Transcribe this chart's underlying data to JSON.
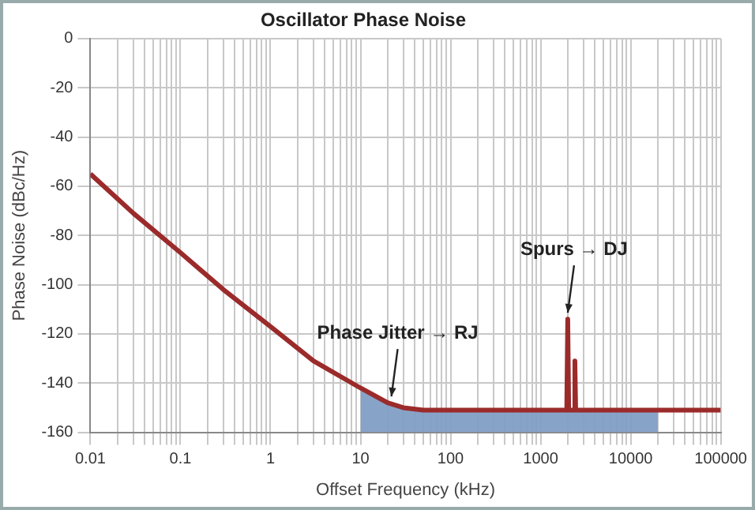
{
  "chart_data": {
    "type": "line",
    "title": "Oscillator Phase Noise",
    "xlabel": "Offset Frequency (kHz)",
    "ylabel": "Phase Noise (dBc/Hz)",
    "log": "x",
    "grid": true,
    "legend": false,
    "marker": "none",
    "line_style": "solid",
    "xlim": [
      0.01,
      100000
    ],
    "ylim": [
      -160,
      0
    ],
    "xticks": [
      0.01,
      {
        "value": 0.02,
        "label": null
      },
      {
        "value": 0.03,
        "label": null
      },
      {
        "value": 0.04,
        "label": null
      },
      {
        "value": 0.05,
        "label": null
      },
      {
        "value": 0.06,
        "label": null
      },
      {
        "value": 0.07,
        "label": null
      },
      {
        "value": 0.08,
        "label": null
      },
      {
        "value": 0.09,
        "label": null
      },
      0.1,
      {
        "value": 0.2,
        "label": null
      },
      {
        "value": 0.3,
        "label": null
      },
      {
        "value": 0.4,
        "label": null
      },
      {
        "value": 0.5,
        "label": null
      },
      {
        "value": 0.6,
        "label": null
      },
      {
        "value": 0.7,
        "label": null
      },
      {
        "value": 0.8,
        "label": null
      },
      {
        "value": 0.9,
        "label": null
      },
      1,
      {
        "value": 2,
        "label": null
      },
      {
        "value": 3,
        "label": null
      },
      {
        "value": 4,
        "label": null
      },
      {
        "value": 5,
        "label": null
      },
      {
        "value": 6,
        "label": null
      },
      {
        "value": 7,
        "label": null
      },
      {
        "value": 8,
        "label": null
      },
      {
        "value": 9,
        "label": null
      },
      10,
      {
        "value": 20,
        "label": null
      },
      {
        "value": 30,
        "label": null
      },
      {
        "value": 40,
        "label": null
      },
      {
        "value": 50,
        "label": null
      },
      {
        "value": 60,
        "label": null
      },
      {
        "value": 70,
        "label": null
      },
      {
        "value": 80,
        "label": null
      },
      {
        "value": 90,
        "label": null
      },
      100,
      {
        "value": 200,
        "label": null
      },
      {
        "value": 300,
        "label": null
      },
      {
        "value": 400,
        "label": null
      },
      {
        "value": 500,
        "label": null
      },
      {
        "value": 600,
        "label": null
      },
      {
        "value": 700,
        "label": null
      },
      {
        "value": 800,
        "label": null
      },
      {
        "value": 900,
        "label": null
      },
      1000,
      {
        "value": 2000,
        "label": null
      },
      {
        "value": 3000,
        "label": null
      },
      {
        "value": 4000,
        "label": null
      },
      {
        "value": 5000,
        "label": null
      },
      {
        "value": 6000,
        "label": null
      },
      {
        "value": 7000,
        "label": null
      },
      {
        "value": 8000,
        "label": null
      },
      {
        "value": 9000,
        "label": null
      },
      10000,
      {
        "value": 20000,
        "label": null
      },
      {
        "value": 30000,
        "label": null
      },
      {
        "value": 40000,
        "label": null
      },
      {
        "value": 50000,
        "label": null
      },
      {
        "value": 60000,
        "label": null
      },
      {
        "value": 70000,
        "label": null
      },
      {
        "value": 80000,
        "label": null
      },
      {
        "value": 90000,
        "label": null
      },
      100000
    ],
    "yticks": [
      -160,
      -140,
      -120,
      -100,
      -80,
      -60,
      -40,
      -20,
      0
    ],
    "series": [
      {
        "type": "area",
        "color": "#7f9cc4",
        "x": [
          10,
          10,
          20,
          30,
          50,
          100,
          1000,
          20000,
          20000
        ],
        "values": [
          -160,
          -142,
          -148,
          -150,
          -151,
          -151,
          -151,
          -151,
          -160
        ]
      },
      {
        "type": "line",
        "color": "#9b2b2b",
        "x": [
          0.01,
          0.03,
          0.1,
          0.3,
          1,
          3,
          10,
          20,
          30,
          50,
          100,
          1000,
          1950,
          2000,
          2050,
          2350,
          2400,
          2450,
          10000,
          100000
        ],
        "values": [
          -55,
          -71,
          -87,
          -102,
          -117,
          -131,
          -142,
          -148,
          -150,
          -151,
          -151,
          -151,
          -151,
          -114,
          -151,
          -151,
          -131,
          -151,
          -151,
          -151
        ]
      }
    ],
    "annotations": [
      {
        "text": "Phase Jitter → RJ",
        "x": 22,
        "y": -148
      },
      {
        "text": "Spurs → DJ",
        "x": 2000,
        "y": -114
      }
    ]
  }
}
